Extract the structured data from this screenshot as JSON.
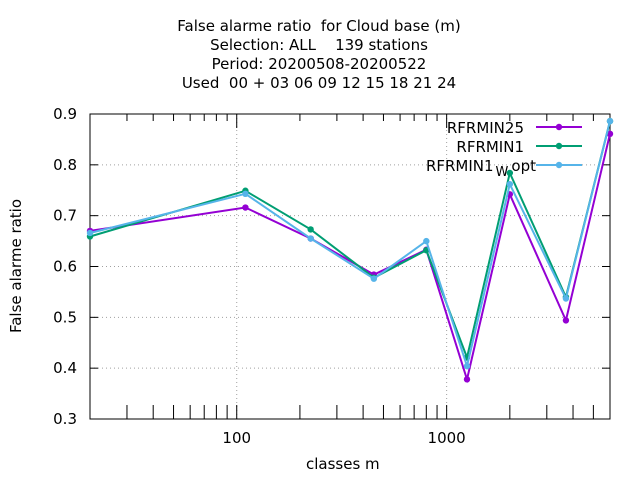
{
  "chart_data": {
    "type": "line",
    "title_lines": [
      "False alarme ratio  for Cloud base (m)",
      "Selection: ALL    139 stations",
      "Period: 20200508-20200522",
      "Used  00 + 03 06 09 12 15 18 21 24"
    ],
    "xlabel": "classes m",
    "ylabel": "False alarme ratio",
    "x_scale": "log",
    "xlim": [
      20,
      6000
    ],
    "ylim": [
      0.3,
      0.9
    ],
    "x_ticks": [
      100,
      1000
    ],
    "x_tick_labels": [
      "100",
      "1000"
    ],
    "y_ticks": [
      0.3,
      0.4,
      0.5,
      0.6,
      0.7,
      0.8,
      0.9
    ],
    "y_tick_labels": [
      "0.3",
      "0.4",
      "0.5",
      "0.6",
      "0.7",
      "0.8",
      "0.9"
    ],
    "grid": true,
    "legend_position": "top-right",
    "x": [
      20,
      110,
      225,
      450,
      800,
      1250,
      2000,
      3700,
      6000
    ],
    "series": [
      {
        "name": "RFRMIN25",
        "color": "#9400d3",
        "marker": "filled-circle",
        "values": [
          0.67,
          0.716,
          0.655,
          0.584,
          0.633,
          0.378,
          0.742,
          0.494,
          0.861
        ]
      },
      {
        "name": "RFRMIN1",
        "color": "#009e73",
        "marker": "filled-circle",
        "values": [
          0.659,
          0.749,
          0.673,
          0.578,
          0.632,
          0.421,
          0.784,
          0.54,
          0.886
        ]
      },
      {
        "name": "RFRMIN1_W opt",
        "color": "#56b4e9",
        "marker": "filled-circle",
        "values": [
          0.666,
          0.743,
          0.655,
          0.576,
          0.65,
          0.404,
          0.762,
          0.537,
          0.886
        ]
      }
    ]
  },
  "legend": {
    "label_1": "RFRMIN25",
    "label_2": "RFRMIN1",
    "label_3_main": "RFRMIN1",
    "label_3_sub": "W",
    "label_3_tail": "opt"
  }
}
